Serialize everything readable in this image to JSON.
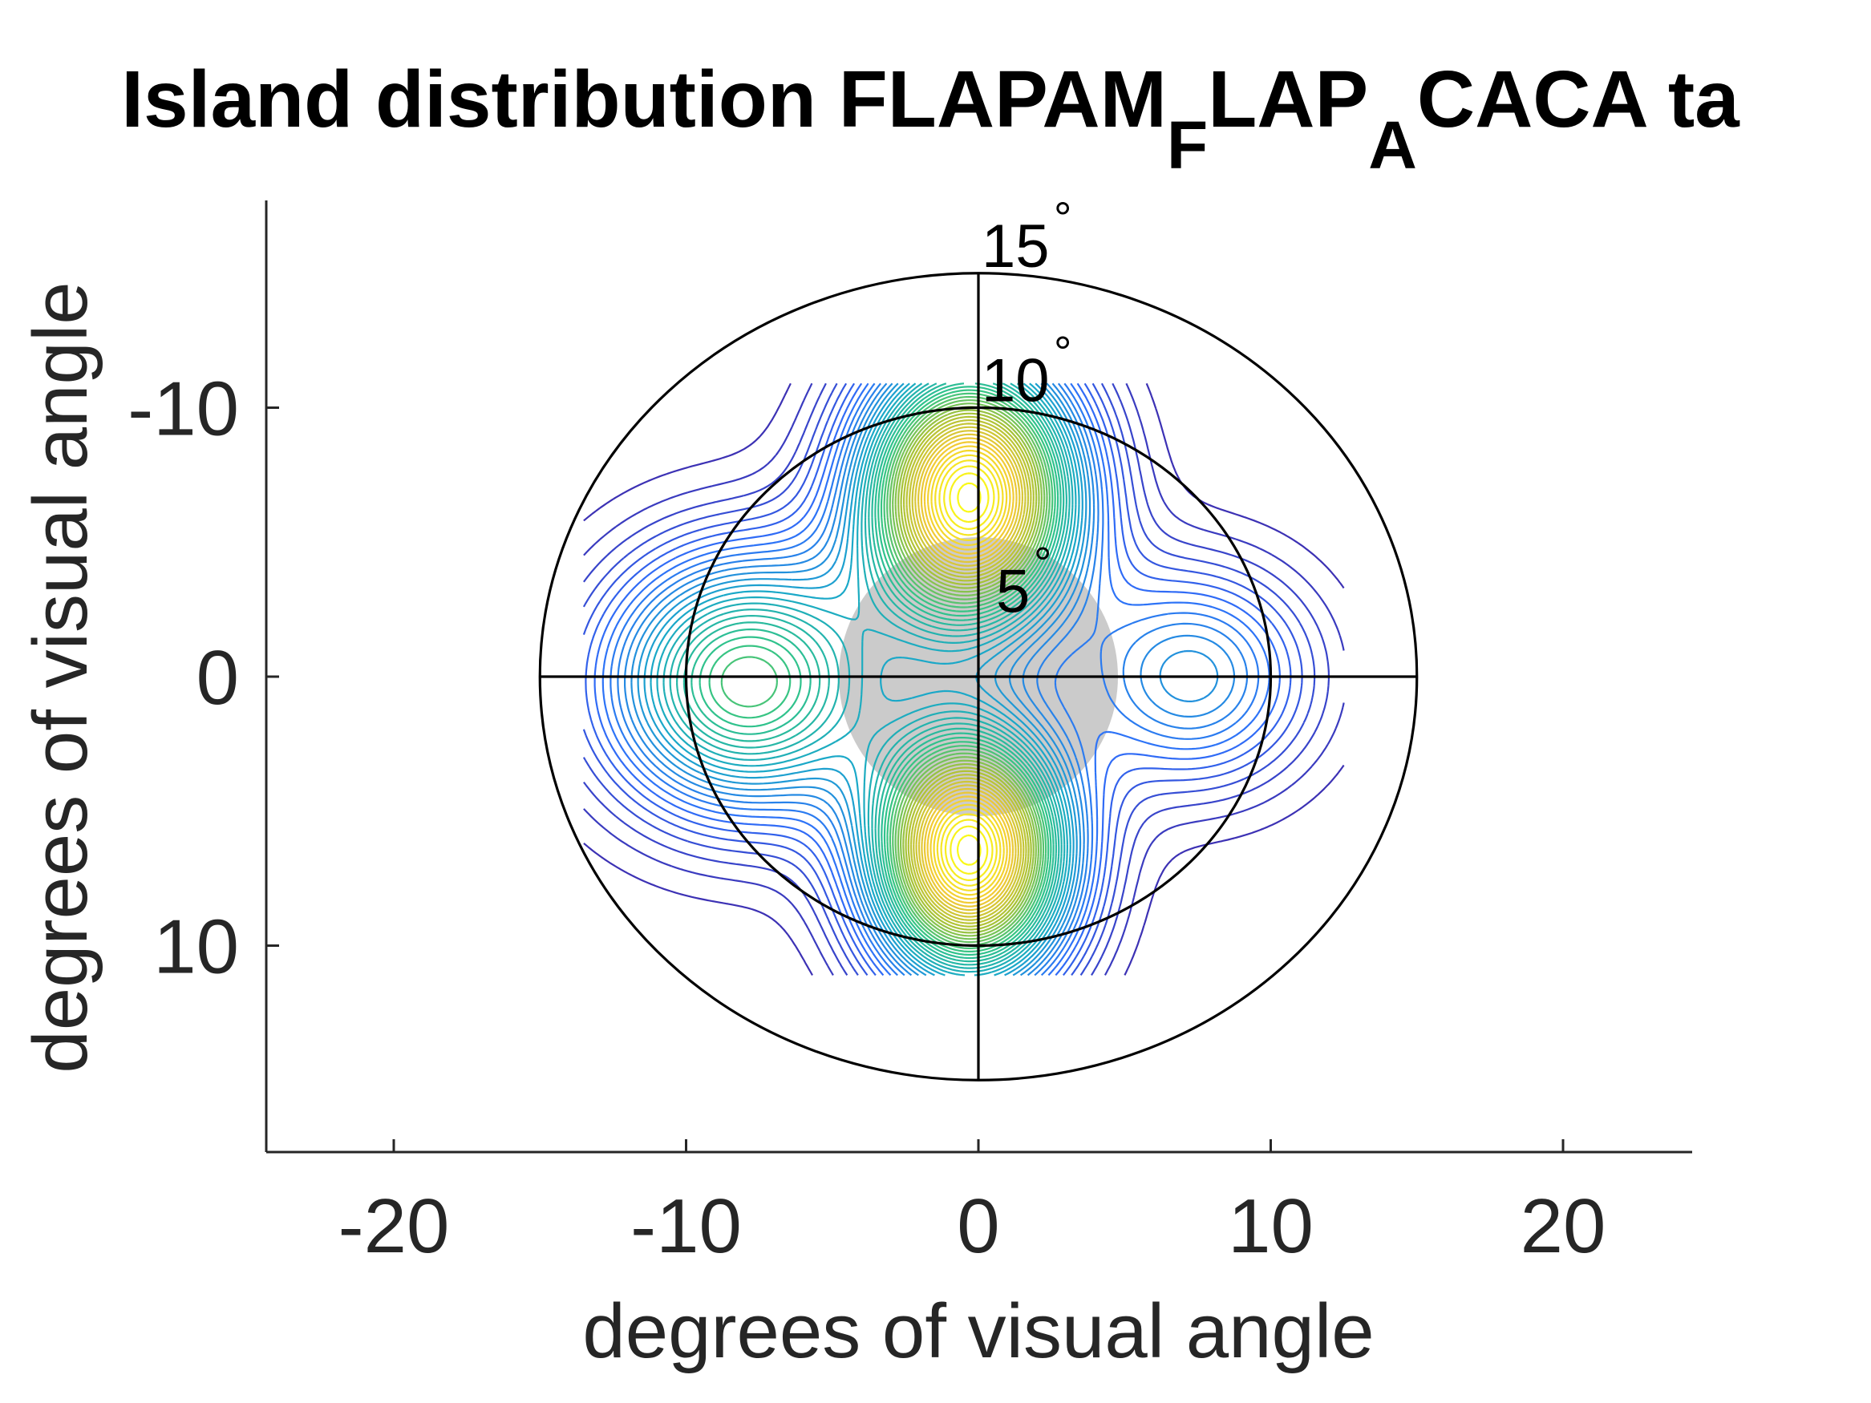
{
  "chart_data": {
    "type": "contour",
    "title": {
      "parts": [
        {
          "text": "Island distribution FLAPAM",
          "sub": false
        },
        {
          "text": "F",
          "sub": true
        },
        {
          "text": "LAP",
          "sub": false
        },
        {
          "text": "A",
          "sub": true
        },
        {
          "text": "CACA ta",
          "sub": false
        }
      ]
    },
    "xlabel": "degrees of visual angle",
    "ylabel": "degrees of visual angle",
    "xlim": [
      -24.5,
      24.5
    ],
    "ylim": [
      -16.3,
      16.3
    ],
    "y_direction": "reverse",
    "xticks": [
      -20,
      -10,
      0,
      10,
      20
    ],
    "yticks": [
      -10,
      0,
      10
    ],
    "xtick_labels": [
      "-20",
      "-10",
      "0",
      "10",
      "20"
    ],
    "ytick_labels": [
      "-10",
      "0",
      "10"
    ],
    "grid": false,
    "colormap": [
      "#3e26a8",
      "#2f6ffb",
      "#1aa8c8",
      "#31c487",
      "#a9c235",
      "#f2c935",
      "#f9fb15"
    ],
    "eccentricity_rings": [
      {
        "radius": 15,
        "label": "15",
        "unit": "°"
      },
      {
        "radius": 10,
        "label": "10",
        "unit": "°"
      },
      {
        "radius": 5,
        "label": "5",
        "unit": "°"
      }
    ],
    "fovea_disc": {
      "radius": 5,
      "color": "#cbcbcb"
    },
    "contour_domain": {
      "x": [
        -13.5,
        12.5
      ],
      "y": [
        -10.9,
        11.1
      ]
    },
    "blobs": [
      {
        "label": "upper",
        "x": -0.3,
        "y": -6.7,
        "sx": 2.5,
        "sy": 3.4,
        "peak": 1.0
      },
      {
        "label": "lower",
        "x": -0.3,
        "y": 6.5,
        "sx": 2.3,
        "sy": 3.2,
        "peak": 1.0
      },
      {
        "label": "left",
        "x": -7.9,
        "y": 0.2,
        "sx": 3.3,
        "sy": 3.3,
        "peak": 0.55
      },
      {
        "label": "right",
        "x": 7.3,
        "y": 0.0,
        "sx": 2.8,
        "sy": 2.8,
        "peak": 0.28
      }
    ]
  }
}
